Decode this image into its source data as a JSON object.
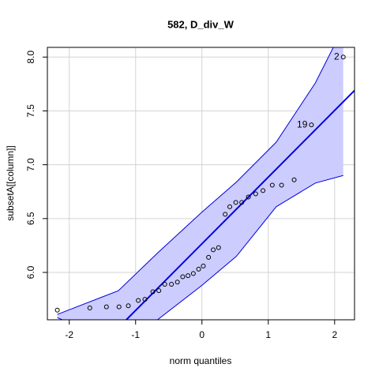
{
  "chart_data": {
    "type": "scatter",
    "title": "582, D_div_W",
    "x_label": "norm quantiles",
    "y_label": "subsetA[[column]]",
    "xlim": [
      -2.33,
      2.3
    ],
    "ylim": [
      5.56,
      8.09
    ],
    "xticks": [
      -2,
      -1,
      0,
      1,
      2
    ],
    "yticks": [
      {
        "value": 6,
        "label": "6.0"
      },
      6.5,
      {
        "value": 7,
        "label": "7.0"
      },
      7.5,
      {
        "value": 8,
        "label": "8.0"
      }
    ],
    "grid": true,
    "color": "#000000",
    "x": [
      -2.18,
      -1.69,
      -1.44,
      -1.25,
      -1.11,
      -0.96,
      -0.86,
      -0.74,
      -0.65,
      -0.56,
      -0.46,
      -0.37,
      -0.29,
      -0.21,
      -0.13,
      -0.05,
      0.02,
      0.1,
      0.17,
      0.25,
      0.35,
      0.42,
      0.51,
      0.6,
      0.7,
      0.81,
      0.92,
      1.06,
      1.2,
      1.39,
      1.65,
      2.13
    ],
    "values": [
      5.65,
      5.67,
      5.68,
      5.68,
      5.69,
      5.74,
      5.75,
      5.82,
      5.83,
      5.89,
      5.89,
      5.91,
      5.96,
      5.97,
      5.99,
      6.03,
      6.06,
      6.14,
      6.21,
      6.23,
      6.54,
      6.61,
      6.65,
      6.65,
      6.7,
      6.73,
      6.76,
      6.81,
      6.81,
      6.86,
      7.37,
      8.0
    ],
    "point_labels": [
      null,
      null,
      null,
      null,
      null,
      null,
      null,
      null,
      null,
      null,
      null,
      null,
      null,
      null,
      null,
      null,
      null,
      null,
      null,
      null,
      null,
      null,
      null,
      null,
      null,
      null,
      null,
      null,
      null,
      null,
      "19",
      "2"
    ],
    "reference_line": {
      "color": "#0000dd",
      "x": [
        -1.14,
        2.3
      ],
      "y": [
        5.56,
        7.69
      ]
    },
    "envelope": {
      "color": "#0000dd",
      "fill": "#ccccff",
      "upper": {
        "x": [
          -2.18,
          -1.26,
          -0.67,
          0,
          0.52,
          1.12,
          1.71,
          1.98,
          2.13
        ],
        "y": [
          5.61,
          5.83,
          6.18,
          6.56,
          6.84,
          7.21,
          7.76,
          8.09,
          8.3
        ]
      },
      "lower": {
        "x": [
          -2.18,
          -1.5,
          -1.0,
          -0.67,
          0,
          0.52,
          1.12,
          1.71,
          2.13
        ],
        "y": [
          5.58,
          5.4,
          5.35,
          5.56,
          5.88,
          6.15,
          6.61,
          6.83,
          6.9
        ]
      }
    }
  }
}
